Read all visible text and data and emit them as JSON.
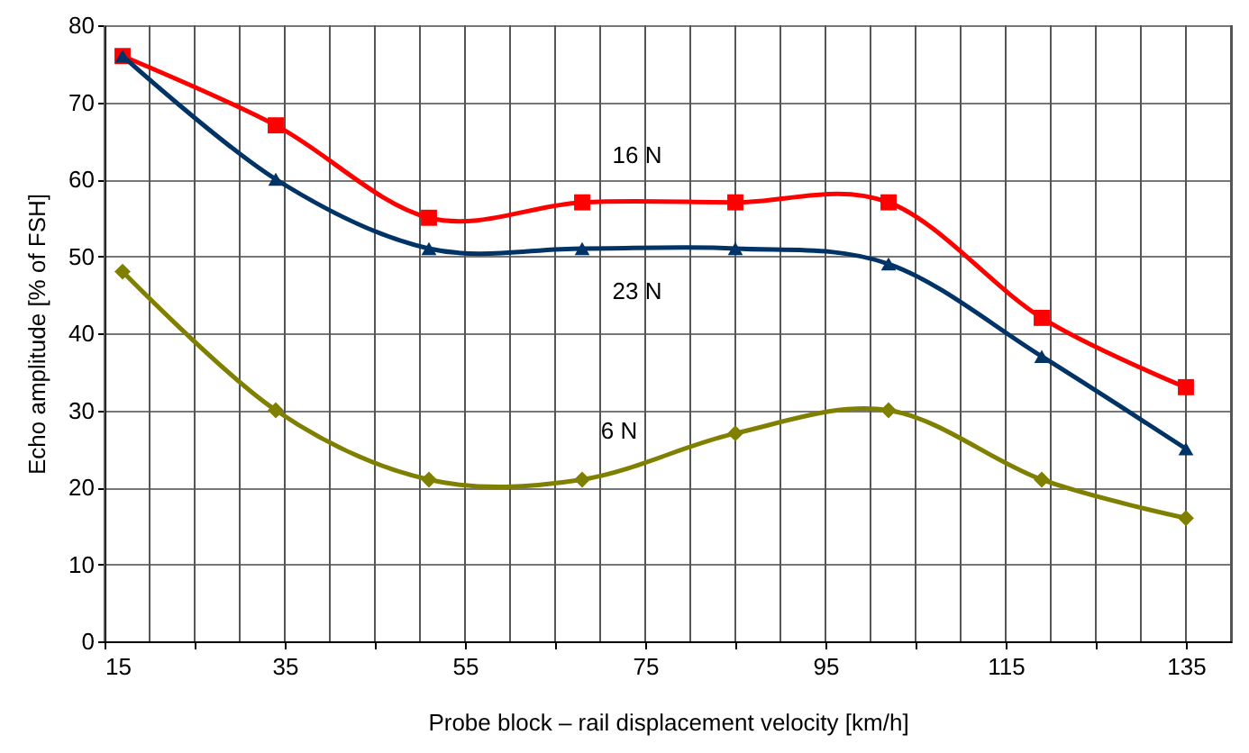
{
  "chart_data": {
    "type": "line",
    "xlabel": "Probe block – rail displacement velocity [km/h]",
    "ylabel": "Echo amplitude [% of FSH]",
    "x": [
      17,
      34,
      51,
      68,
      85,
      102,
      119,
      135
    ],
    "series": [
      {
        "name": "16 N",
        "color": "#ff0000",
        "marker": "square",
        "values": [
          76,
          67,
          55,
          57,
          57,
          57,
          42,
          33
        ]
      },
      {
        "name": "23 N",
        "color": "#003366",
        "marker": "triangle",
        "values": [
          76,
          60,
          51,
          51,
          51,
          49,
          37,
          25
        ]
      },
      {
        "name": "6 N",
        "color": "#808000",
        "marker": "diamond",
        "values": [
          48,
          30,
          21,
          21,
          27,
          30,
          21,
          16
        ]
      }
    ],
    "xlim": [
      15,
      140
    ],
    "xticks": [
      15,
      {
        "value": 20,
        "label": null
      },
      {
        "value": 25,
        "label": null
      },
      {
        "value": 30,
        "label": null
      },
      35,
      {
        "value": 40,
        "label": null
      },
      {
        "value": 45,
        "label": null
      },
      {
        "value": 50,
        "label": null
      },
      55,
      {
        "value": 60,
        "label": null
      },
      {
        "value": 65,
        "label": null
      },
      {
        "value": 70,
        "label": null
      },
      75,
      {
        "value": 80,
        "label": null
      },
      {
        "value": 85,
        "label": null
      },
      {
        "value": 90,
        "label": null
      },
      95,
      {
        "value": 100,
        "label": null
      },
      {
        "value": 105,
        "label": null
      },
      {
        "value": 110,
        "label": null
      },
      115,
      {
        "value": 120,
        "label": null
      },
      {
        "value": 125,
        "label": null
      },
      {
        "value": 130,
        "label": null
      },
      135,
      {
        "value": 140,
        "label": null
      }
    ],
    "ylim": [
      0,
      80
    ],
    "yticks": [
      0,
      10,
      20,
      30,
      40,
      50,
      60,
      70,
      80
    ],
    "grid": true,
    "line_style": "solid"
  }
}
